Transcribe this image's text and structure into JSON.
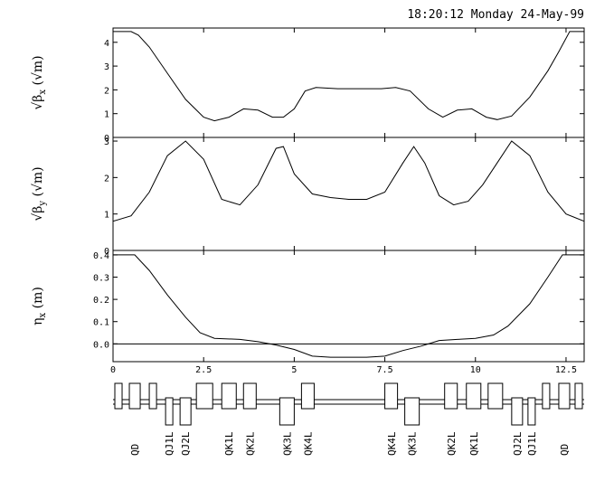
{
  "header": {
    "timestamp": "18:20:12 Monday 24-May-99"
  },
  "chart_data": {
    "type": "line",
    "x_ticks": [
      "0",
      "2.5",
      "5",
      "7.5",
      "10",
      "12.5"
    ],
    "xlim": [
      0,
      13
    ],
    "panels": [
      {
        "ylabel": "√β_x (√m)",
        "ylabel_parts": {
          "pre": "√β",
          "sub": "x",
          "post": " (√m)"
        },
        "ylim": [
          0,
          4.6
        ],
        "yticks": [
          "0",
          "1",
          "2",
          "3",
          "4"
        ],
        "x": [
          0,
          0.5,
          0.7,
          1,
          1.5,
          2,
          2.5,
          2.8,
          3.2,
          3.6,
          4,
          4.4,
          4.7,
          5,
          5.3,
          5.6,
          6.2,
          7,
          7.4,
          7.8,
          8.2,
          8.7,
          9.1,
          9.5,
          9.9,
          10.3,
          10.6,
          11,
          11.5,
          12,
          12.3,
          12.6,
          13
        ],
        "y": [
          4.45,
          4.45,
          4.3,
          3.8,
          2.7,
          1.6,
          0.85,
          0.7,
          0.85,
          1.2,
          1.15,
          0.85,
          0.85,
          1.2,
          1.95,
          2.1,
          2.05,
          2.05,
          2.05,
          2.1,
          1.95,
          1.2,
          0.85,
          1.15,
          1.2,
          0.85,
          0.75,
          0.9,
          1.7,
          2.8,
          3.6,
          4.45,
          4.45
        ],
        "zero_line": false
      },
      {
        "ylabel": "√β_y (√m)",
        "ylabel_parts": {
          "pre": "√β",
          "sub": "y",
          "post": " (√m)"
        },
        "ylim": [
          0,
          3.1
        ],
        "yticks": [
          "0",
          "1",
          "2",
          "3"
        ],
        "x": [
          0,
          0.5,
          1,
          1.5,
          2,
          2.5,
          3,
          3.5,
          4,
          4.5,
          4.7,
          5,
          5.5,
          6,
          6.5,
          7,
          7.5,
          8,
          8.3,
          8.6,
          9,
          9.4,
          9.8,
          10.2,
          10.6,
          11,
          11.5,
          12,
          12.5,
          13
        ],
        "y": [
          0.8,
          0.95,
          1.6,
          2.6,
          3.0,
          2.5,
          1.4,
          1.25,
          1.8,
          2.8,
          2.85,
          2.1,
          1.55,
          1.45,
          1.4,
          1.4,
          1.6,
          2.4,
          2.85,
          2.4,
          1.5,
          1.25,
          1.35,
          1.8,
          2.4,
          3.0,
          2.6,
          1.6,
          1.0,
          0.8
        ],
        "zero_line": false
      },
      {
        "ylabel": "η_x (m)",
        "ylabel_parts": {
          "pre": "η",
          "sub": "x",
          "post": " (m)"
        },
        "ylim": [
          -0.08,
          0.42
        ],
        "yticks": [
          "0.0",
          "0.1",
          "0.2",
          "0.3",
          "0.4"
        ],
        "x": [
          0,
          0.6,
          1,
          1.5,
          2,
          2.4,
          2.8,
          3.5,
          4,
          4.5,
          5,
          5.5,
          6,
          6.5,
          7,
          7.5,
          8,
          8.5,
          9,
          9.5,
          10,
          10.5,
          10.9,
          11.5,
          12,
          12.4,
          13
        ],
        "y": [
          0.4,
          0.4,
          0.33,
          0.22,
          0.12,
          0.05,
          0.025,
          0.02,
          0.01,
          -0.005,
          -0.025,
          -0.055,
          -0.06,
          -0.06,
          -0.06,
          -0.055,
          -0.03,
          -0.01,
          0.015,
          0.02,
          0.025,
          0.04,
          0.08,
          0.18,
          0.3,
          0.4,
          0.4
        ],
        "zero_line": true
      }
    ],
    "lattice": {
      "elements": [
        {
          "x": 0.05,
          "w": 0.2,
          "side": "up"
        },
        {
          "x": 0.45,
          "w": 0.3,
          "side": "up"
        },
        {
          "x": 1.0,
          "w": 0.2,
          "side": "up"
        },
        {
          "x": 1.45,
          "w": 0.2,
          "side": "down"
        },
        {
          "x": 1.85,
          "w": 0.3,
          "side": "down"
        },
        {
          "x": 2.3,
          "w": 0.45,
          "side": "up"
        },
        {
          "x": 3.0,
          "w": 0.4,
          "side": "up"
        },
        {
          "x": 3.6,
          "w": 0.35,
          "side": "up"
        },
        {
          "x": 4.6,
          "w": 0.4,
          "side": "down"
        },
        {
          "x": 5.2,
          "w": 0.35,
          "side": "up"
        },
        {
          "x": 7.5,
          "w": 0.35,
          "side": "up"
        },
        {
          "x": 8.05,
          "w": 0.4,
          "side": "down"
        },
        {
          "x": 9.15,
          "w": 0.35,
          "side": "up"
        },
        {
          "x": 9.75,
          "w": 0.4,
          "side": "up"
        },
        {
          "x": 10.35,
          "w": 0.4,
          "side": "up"
        },
        {
          "x": 11.0,
          "w": 0.3,
          "side": "down"
        },
        {
          "x": 11.45,
          "w": 0.2,
          "side": "down"
        },
        {
          "x": 11.85,
          "w": 0.2,
          "side": "up"
        },
        {
          "x": 12.3,
          "w": 0.3,
          "side": "up"
        },
        {
          "x": 12.75,
          "w": 0.2,
          "side": "up"
        }
      ],
      "labels": [
        {
          "text": "QD",
          "x": 0.6
        },
        {
          "text": "QJ1L",
          "x": 1.55
        },
        {
          "text": "QJ2L",
          "x": 2.0
        },
        {
          "text": "QK1L",
          "x": 3.2
        },
        {
          "text": "QK2L",
          "x": 3.78
        },
        {
          "text": "QK3L",
          "x": 4.8
        },
        {
          "text": "QK4L",
          "x": 5.38
        },
        {
          "text": "QK4L",
          "x": 7.68
        },
        {
          "text": "QK3L",
          "x": 8.25
        },
        {
          "text": "QK2L",
          "x": 9.33
        },
        {
          "text": "QK1L",
          "x": 9.95
        },
        {
          "text": "QJ2L",
          "x": 11.15
        },
        {
          "text": "QJ1L",
          "x": 11.55
        },
        {
          "text": "QD",
          "x": 12.45
        }
      ]
    }
  }
}
